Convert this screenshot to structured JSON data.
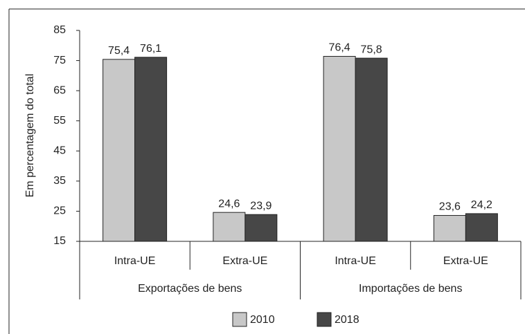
{
  "chart_data": {
    "type": "bar",
    "y_label": "Em percentagem do total",
    "categories": [
      "Intra-UE",
      "Extra-UE",
      "Intra-UE",
      "Extra-UE"
    ],
    "groups": [
      "Exportações de bens",
      "Importações de bens"
    ],
    "series": [
      {
        "name": "2010",
        "color": "#c8c8c8",
        "values": [
          75.4,
          24.6,
          76.4,
          23.6
        ],
        "value_labels": [
          "75,4",
          "24,6",
          "76,4",
          "23,6"
        ]
      },
      {
        "name": "2018",
        "color": "#474747",
        "values": [
          76.1,
          23.9,
          75.8,
          24.2
        ],
        "value_labels": [
          "76,1",
          "23,9",
          "75,8",
          "24,2"
        ]
      }
    ],
    "ylim": [
      15,
      85
    ],
    "yticks": [
      15,
      25,
      35,
      45,
      55,
      65,
      75,
      85
    ],
    "legend": "bottom"
  }
}
